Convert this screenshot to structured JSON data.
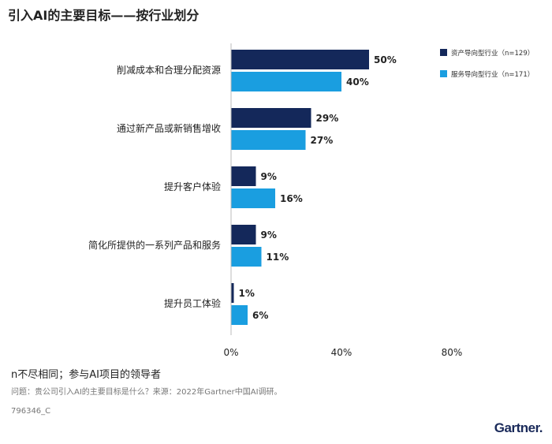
{
  "title": "引入AI的主要目标——按行业划分",
  "chart_data": {
    "type": "bar",
    "orientation": "horizontal",
    "categories": [
      "削减成本和合理分配资源",
      "通过新产品或新销售增收",
      "提升客户体验",
      "简化所提供的一系列产品和服务",
      "提升员工体验"
    ],
    "series": [
      {
        "name": "资产导向型行业（n=129）",
        "color": "#14285a",
        "values": [
          50,
          29,
          9,
          9,
          1
        ]
      },
      {
        "name": "服务导向型行业（n=171）",
        "color": "#1a9ee0",
        "values": [
          40,
          27,
          16,
          11,
          6
        ]
      }
    ],
    "xlim": [
      0,
      80
    ],
    "xticks": [
      "0%",
      "40%",
      "80%"
    ],
    "value_suffix": "%",
    "legend": "top-right",
    "grid": false
  },
  "footer": {
    "note": "n不尽相同；参与AI项目的领导者",
    "question": "问题：贵公司引入AI的主要目标是什么？来源：2022年Gartner中国AI调研。",
    "code": "796346_C",
    "logo": "Gartner."
  }
}
